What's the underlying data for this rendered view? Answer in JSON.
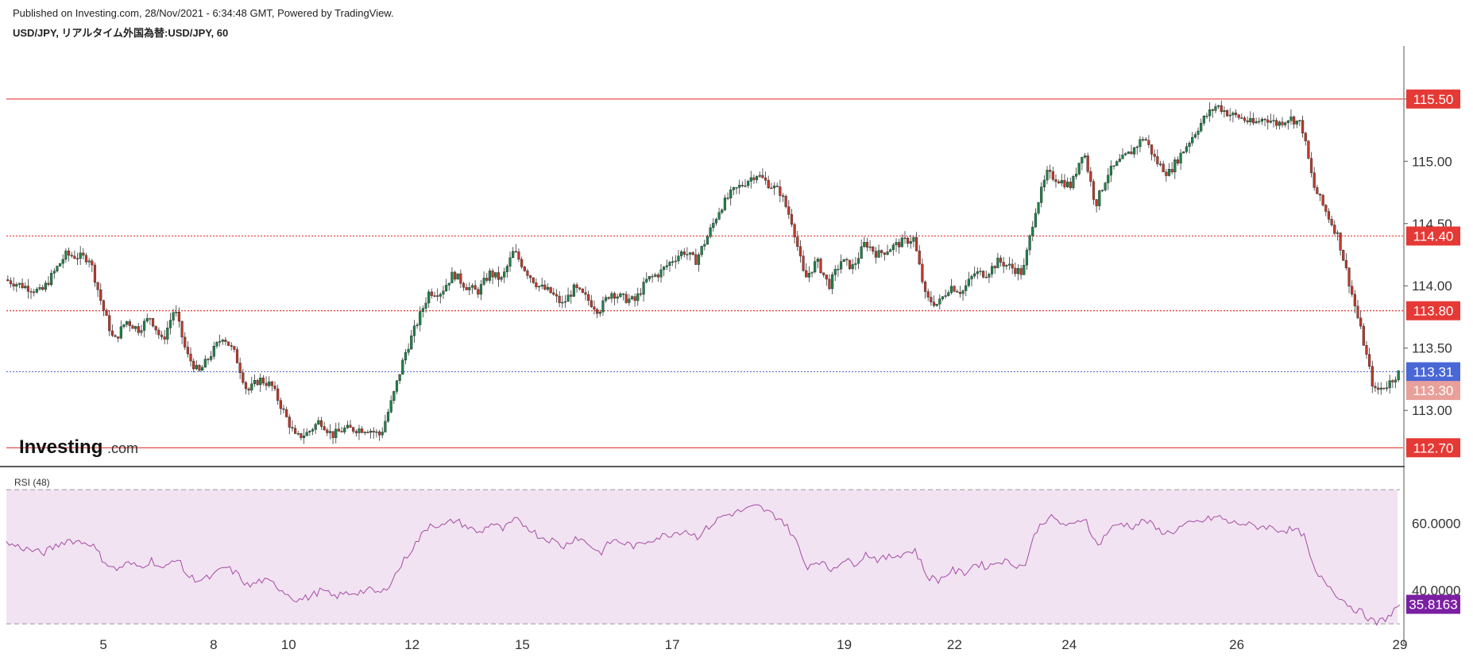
{
  "header": {
    "published": "Published on Investing.com, 28/Nov/2021 - 6:34:48 GMT, Powered by TradingView.",
    "symbol": "USD/JPY, リアルタイム外国為替:USD/JPY, 60"
  },
  "watermark": {
    "brand": "Investing",
    "suffix": ".com"
  },
  "colors": {
    "up": "#26a69a",
    "up_body": "#1e8449",
    "down": "#c0392b",
    "level_line": "#e53935",
    "last_price": "#4a67d6",
    "rsi_line": "#a64ca6",
    "rsi_band": "#f1e3f1",
    "rsi_value_bg": "#7b1fa2",
    "prev_close_bg": "#e8a09a"
  },
  "chart_data": [
    {
      "type": "candlestick",
      "title": "USD/JPY, リアルタイム外国為替:USD/JPY, 60",
      "x_tick_labels": [
        "5",
        "8",
        "10",
        "12",
        "15",
        "17",
        "19",
        "22",
        "24",
        "26",
        "29"
      ],
      "y_tick_labels": [
        "115.50",
        "115.00",
        "114.50",
        "114.00",
        "113.50",
        "113.00"
      ],
      "ylim": [
        112.6,
        115.9
      ],
      "price_levels": [
        {
          "value": 115.5,
          "label": "115.50",
          "style": "solid"
        },
        {
          "value": 114.4,
          "label": "114.40",
          "style": "dotted"
        },
        {
          "value": 113.8,
          "label": "113.80",
          "style": "dotted"
        },
        {
          "value": 112.7,
          "label": "112.70",
          "style": "solid"
        }
      ],
      "last_price": {
        "value": 113.31,
        "label": "113.31"
      },
      "previous_close": {
        "value": 113.3,
        "label": "113.30"
      },
      "price_path": [
        [
          0,
          114.05
        ],
        [
          3,
          113.95
        ],
        [
          5,
          114.25
        ],
        [
          7,
          114.22
        ],
        [
          8,
          113.85
        ],
        [
          9,
          113.55
        ],
        [
          10,
          113.72
        ],
        [
          11,
          113.65
        ],
        [
          12,
          113.75
        ],
        [
          13,
          113.55
        ],
        [
          14,
          113.82
        ],
        [
          15,
          113.45
        ],
        [
          16,
          113.3
        ],
        [
          17,
          113.45
        ],
        [
          18,
          113.6
        ],
        [
          19,
          113.45
        ],
        [
          20,
          113.15
        ],
        [
          21,
          113.25
        ],
        [
          22,
          113.2
        ],
        [
          24,
          112.78
        ],
        [
          25,
          112.82
        ],
        [
          26,
          112.92
        ],
        [
          27,
          112.8
        ],
        [
          28,
          112.85
        ],
        [
          30,
          112.85
        ],
        [
          31,
          112.8
        ],
        [
          32,
          113.1
        ],
        [
          33,
          113.45
        ],
        [
          35,
          113.95
        ],
        [
          36,
          113.95
        ],
        [
          37,
          114.1
        ],
        [
          38,
          114.0
        ],
        [
          39,
          113.95
        ],
        [
          40,
          114.1
        ],
        [
          41,
          114.05
        ],
        [
          42,
          114.28
        ],
        [
          43,
          114.12
        ],
        [
          44,
          114.0
        ],
        [
          45,
          113.95
        ],
        [
          46,
          113.85
        ],
        [
          47,
          113.98
        ],
        [
          48,
          113.9
        ],
        [
          49,
          113.8
        ],
        [
          50,
          113.95
        ],
        [
          51,
          113.9
        ],
        [
          52,
          113.88
        ],
        [
          53,
          114.05
        ],
        [
          54,
          114.1
        ],
        [
          55,
          114.2
        ],
        [
          56,
          114.28
        ],
        [
          57,
          114.2
        ],
        [
          58,
          114.4
        ],
        [
          59,
          114.62
        ],
        [
          60,
          114.75
        ],
        [
          62,
          114.9
        ],
        [
          63,
          114.82
        ],
        [
          64,
          114.75
        ],
        [
          65,
          114.5
        ],
        [
          66,
          114.05
        ],
        [
          67,
          114.2
        ],
        [
          68,
          114.0
        ],
        [
          69,
          114.2
        ],
        [
          70,
          114.15
        ],
        [
          71,
          114.35
        ],
        [
          72,
          114.25
        ],
        [
          73,
          114.3
        ],
        [
          74,
          114.35
        ],
        [
          75,
          114.38
        ],
        [
          76,
          113.9
        ],
        [
          77,
          113.85
        ],
        [
          78,
          114.0
        ],
        [
          79,
          113.95
        ],
        [
          80,
          114.1
        ],
        [
          81,
          114.1
        ],
        [
          82,
          114.2
        ],
        [
          83,
          114.15
        ],
        [
          84,
          114.1
        ],
        [
          85,
          114.6
        ],
        [
          86,
          114.9
        ],
        [
          87,
          114.85
        ],
        [
          88,
          114.8
        ],
        [
          89,
          115.1
        ],
        [
          90,
          114.65
        ],
        [
          91,
          114.9
        ],
        [
          92,
          115.0
        ],
        [
          93,
          115.08
        ],
        [
          94,
          115.2
        ],
        [
          95,
          115.0
        ],
        [
          96,
          114.9
        ],
        [
          97,
          115.05
        ],
        [
          98,
          115.2
        ],
        [
          99,
          115.35
        ],
        [
          100,
          115.45
        ],
        [
          101,
          115.38
        ],
        [
          102,
          115.35
        ],
        [
          103,
          115.3
        ],
        [
          104,
          115.35
        ],
        [
          105,
          115.3
        ],
        [
          106,
          115.35
        ],
        [
          107,
          115.3
        ],
        [
          108,
          114.8
        ],
        [
          109,
          114.6
        ],
        [
          110,
          114.4
        ],
        [
          111,
          114.0
        ],
        [
          112,
          113.6
        ],
        [
          113,
          113.15
        ],
        [
          114,
          113.2
        ],
        [
          115,
          113.3
        ]
      ]
    },
    {
      "type": "line",
      "title": "RSI (48)",
      "y_tick_labels": [
        "60.0000",
        "40.0000"
      ],
      "ylim": [
        29.1,
        71.2
      ],
      "upper_band": 70,
      "lower_band": 30,
      "last_value": {
        "value": 35.8163,
        "label": "35.8163"
      },
      "rsi_path": [
        [
          0,
          54
        ],
        [
          3,
          51
        ],
        [
          5,
          55
        ],
        [
          7,
          54
        ],
        [
          8,
          49
        ],
        [
          9,
          46
        ],
        [
          10,
          48
        ],
        [
          11,
          47
        ],
        [
          12,
          49
        ],
        [
          13,
          46
        ],
        [
          14,
          50
        ],
        [
          15,
          44
        ],
        [
          16,
          43
        ],
        [
          17,
          44
        ],
        [
          18,
          47
        ],
        [
          19,
          45
        ],
        [
          20,
          41
        ],
        [
          21,
          43
        ],
        [
          22,
          42
        ],
        [
          24,
          37
        ],
        [
          25,
          38
        ],
        [
          26,
          40
        ],
        [
          27,
          38
        ],
        [
          28,
          39
        ],
        [
          30,
          40
        ],
        [
          31,
          39
        ],
        [
          32,
          44
        ],
        [
          33,
          50
        ],
        [
          35,
          60
        ],
        [
          36,
          59
        ],
        [
          37,
          61
        ],
        [
          38,
          59
        ],
        [
          39,
          57
        ],
        [
          40,
          60
        ],
        [
          41,
          58
        ],
        [
          42,
          61
        ],
        [
          43,
          59
        ],
        [
          44,
          56
        ],
        [
          45,
          55
        ],
        [
          46,
          53
        ],
        [
          47,
          56
        ],
        [
          48,
          54
        ],
        [
          49,
          51
        ],
        [
          50,
          55
        ],
        [
          51,
          54
        ],
        [
          52,
          53
        ],
        [
          53,
          55
        ],
        [
          54,
          56
        ],
        [
          55,
          57
        ],
        [
          56,
          58
        ],
        [
          57,
          56
        ],
        [
          58,
          59
        ],
        [
          59,
          62
        ],
        [
          60,
          63
        ],
        [
          62,
          65
        ],
        [
          63,
          63
        ],
        [
          64,
          61
        ],
        [
          65,
          56
        ],
        [
          66,
          47
        ],
        [
          67,
          49
        ],
        [
          68,
          46
        ],
        [
          69,
          49
        ],
        [
          70,
          48
        ],
        [
          71,
          51
        ],
        [
          72,
          49
        ],
        [
          73,
          50
        ],
        [
          74,
          51
        ],
        [
          75,
          52
        ],
        [
          76,
          44
        ],
        [
          77,
          43
        ],
        [
          78,
          46
        ],
        [
          79,
          45
        ],
        [
          80,
          48
        ],
        [
          81,
          47
        ],
        [
          82,
          49
        ],
        [
          83,
          48
        ],
        [
          84,
          47
        ],
        [
          85,
          58
        ],
        [
          86,
          62
        ],
        [
          87,
          60
        ],
        [
          88,
          59
        ],
        [
          89,
          62
        ],
        [
          90,
          53
        ],
        [
          91,
          58
        ],
        [
          92,
          60
        ],
        [
          93,
          59
        ],
        [
          94,
          61
        ],
        [
          95,
          58
        ],
        [
          96,
          57
        ],
        [
          97,
          59
        ],
        [
          98,
          60
        ],
        [
          99,
          61
        ],
        [
          100,
          62
        ],
        [
          101,
          60
        ],
        [
          102,
          60
        ],
        [
          103,
          59
        ],
        [
          104,
          59
        ],
        [
          105,
          58
        ],
        [
          106,
          58
        ],
        [
          107,
          57
        ],
        [
          108,
          45
        ],
        [
          109,
          42
        ],
        [
          110,
          38
        ],
        [
          111,
          35
        ],
        [
          112,
          33
        ],
        [
          113,
          30
        ],
        [
          114,
          32
        ],
        [
          115,
          35.8
        ]
      ]
    }
  ]
}
